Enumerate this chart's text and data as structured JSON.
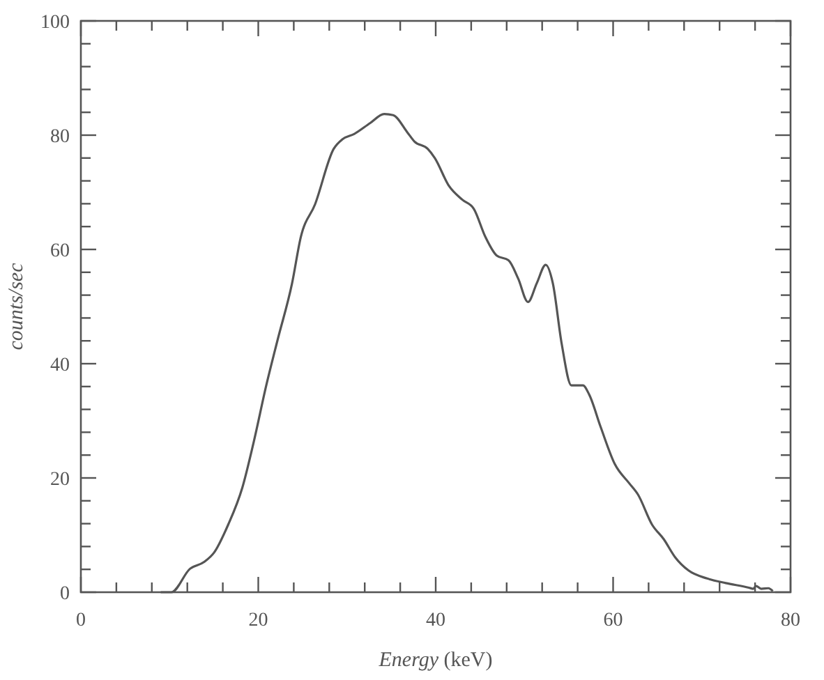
{
  "chart_data": {
    "type": "line",
    "xlabel": "Energy (keV)",
    "ylabel": "counts/sec",
    "xlim": [
      0,
      80
    ],
    "ylim": [
      0,
      100
    ],
    "xticks": [
      0,
      {
        "value": 4,
        "label": null
      },
      {
        "value": 8,
        "label": null
      },
      {
        "value": 12,
        "label": null
      },
      {
        "value": 16,
        "label": null
      },
      20,
      {
        "value": 24,
        "label": null
      },
      {
        "value": 28,
        "label": null
      },
      {
        "value": 32,
        "label": null
      },
      {
        "value": 36,
        "label": null
      },
      40,
      {
        "value": 44,
        "label": null
      },
      {
        "value": 48,
        "label": null
      },
      {
        "value": 52,
        "label": null
      },
      {
        "value": 56,
        "label": null
      },
      60,
      {
        "value": 64,
        "label": null
      },
      {
        "value": 68,
        "label": null
      },
      {
        "value": 72,
        "label": null
      },
      {
        "value": 76,
        "label": null
      },
      80
    ],
    "yticks": [
      0,
      {
        "value": 4,
        "label": null
      },
      {
        "value": 8,
        "label": null
      },
      {
        "value": 12,
        "label": null
      },
      {
        "value": 16,
        "label": null
      },
      20,
      {
        "value": 24,
        "label": null
      },
      {
        "value": 28,
        "label": null
      },
      {
        "value": 32,
        "label": null
      },
      {
        "value": 36,
        "label": null
      },
      40,
      {
        "value": 44,
        "label": null
      },
      {
        "value": 48,
        "label": null
      },
      {
        "value": 52,
        "label": null
      },
      {
        "value": 56,
        "label": null
      },
      60,
      {
        "value": 64,
        "label": null
      },
      {
        "value": 68,
        "label": null
      },
      {
        "value": 72,
        "label": null
      },
      {
        "value": 76,
        "label": null
      },
      80,
      {
        "value": 84,
        "label": null
      },
      {
        "value": 88,
        "label": null
      },
      {
        "value": 92,
        "label": null
      },
      {
        "value": 96,
        "label": null
      },
      100
    ],
    "grid": false,
    "marker": "none",
    "line_style": "solid",
    "series": [
      {
        "color": "#555555",
        "x": [
          9,
          10.2,
          12.3,
          13.9,
          15,
          16.6,
          18.2,
          19.5,
          20.9,
          22.2,
          23.8,
          24.8,
          26.4,
          28.5,
          29.5,
          30.8,
          32.6,
          34.2,
          35.2,
          36.8,
          37.6,
          39.1,
          39.9,
          41.5,
          43,
          44.3,
          45.6,
          46.9,
          48.2,
          49.3,
          50.4,
          51.4,
          52.4,
          53.2,
          54.2,
          55.3,
          56.6,
          57.3,
          58.6,
          60.2,
          61.8,
          62.8,
          64.4,
          65.7,
          67,
          68.5,
          70.6,
          72.7,
          75.3,
          75.8,
          76.1,
          76.7,
          77.5,
          78
        ],
        "values": [
          0,
          0,
          4.1,
          5.3,
          6.9,
          11.8,
          18.3,
          26.4,
          36.2,
          44.3,
          54,
          62.2,
          67.9,
          77.6,
          79.3,
          80.2,
          82.1,
          83.7,
          83.5,
          80.5,
          78.9,
          77.6,
          76,
          71.1,
          68.7,
          67.1,
          62.2,
          58.9,
          58.1,
          54.9,
          50.8,
          54.1,
          57.3,
          54.1,
          43.5,
          36.2,
          36.2,
          34.6,
          28.9,
          22.4,
          19.1,
          17.1,
          11.8,
          9.3,
          6.1,
          3.8,
          2.4,
          1.6,
          0.8,
          0.6,
          1.1,
          0.6,
          0.7,
          0.2
        ]
      }
    ]
  }
}
